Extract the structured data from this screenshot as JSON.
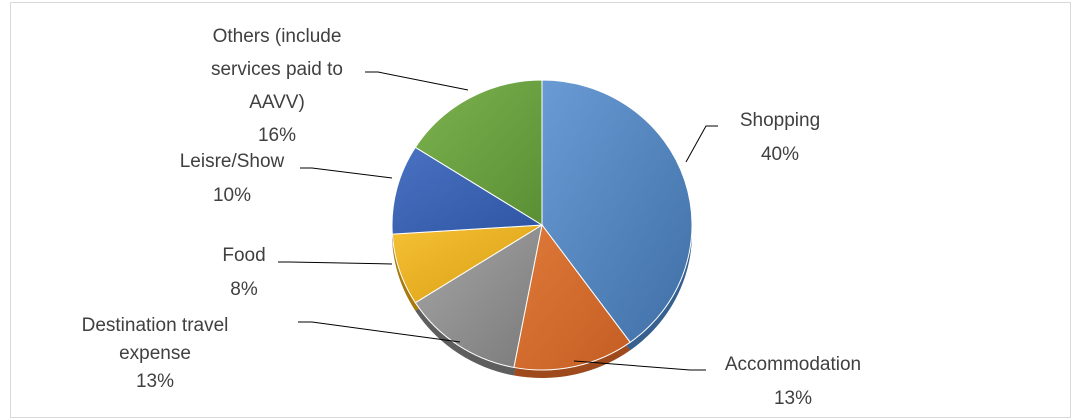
{
  "chart_data": {
    "type": "pie",
    "title": "",
    "start_angle_deg": 0,
    "direction": "clockwise",
    "legend": "none",
    "data_labels": "category-and-percent-outside-with-leader-lines",
    "slices": [
      {
        "category": "Shopping",
        "percent_label": "40%",
        "value": 40,
        "color": "#4f81bd"
      },
      {
        "category": "Accommodation",
        "percent_label": "13%",
        "value": 13,
        "color": "#c0504d"
      },
      {
        "category": "Destination travel expense",
        "percent_label": "13%",
        "value": 13,
        "color": "#7f7f7f"
      },
      {
        "category": "Food",
        "percent_label": "8%",
        "value": 8,
        "color": "#f0b51e"
      },
      {
        "category": "Leisre/Show",
        "percent_label": "10%",
        "value": 10,
        "color": "#3d62b3"
      },
      {
        "category": "Others (include services paid to AAVV)",
        "percent_label": "16%",
        "value": 16,
        "color": "#6aa043"
      }
    ]
  }
}
